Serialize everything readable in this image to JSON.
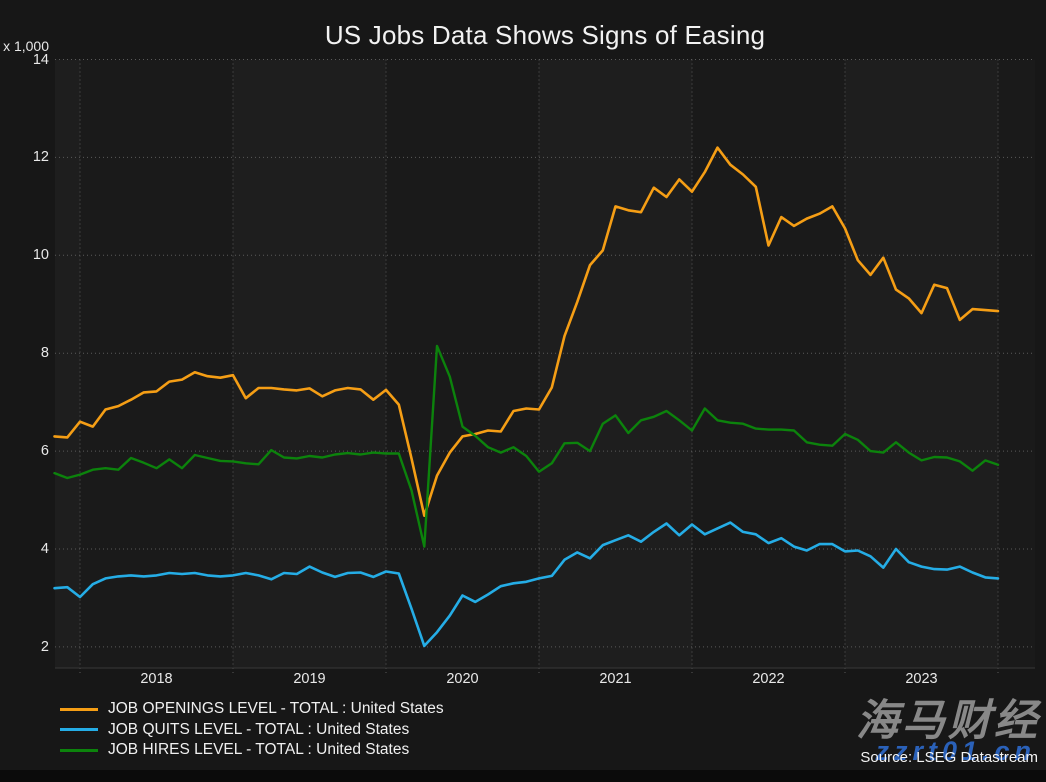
{
  "title": "US Jobs Data Shows Signs of Easing",
  "y_axis": {
    "unit_label": "x 1,000",
    "tick_labels": [
      "14",
      "12",
      "10",
      "8",
      "6",
      "4",
      "2"
    ]
  },
  "x_axis": {
    "year_labels": [
      "2018",
      "2019",
      "2020",
      "2021",
      "2022",
      "2023"
    ]
  },
  "legend": {
    "items": [
      {
        "label": "JOB OPENINGS LEVEL - TOTAL : United States",
        "color": "#f59e15"
      },
      {
        "label": "JOB QUITS LEVEL - TOTAL : United States",
        "color": "#25ade6"
      },
      {
        "label": "JOB HIRES LEVEL - TOTAL : United States",
        "color": "#0c830c"
      }
    ]
  },
  "footer": {
    "source": "Source: LSEG Datastream"
  },
  "watermark": {
    "primary": "海马财经",
    "secondary": "zzrt01.cn"
  },
  "colors": {
    "background": "#171717",
    "plot_background": "#1a1a1a",
    "plot_band_light": "#1e1e1e",
    "gridline": "#5a5a5a",
    "text": "#e9e9e9",
    "openings": "#f59e15",
    "quits": "#25ade6",
    "hires": "#0c830c"
  },
  "chart_data": {
    "type": "line",
    "title": "US Jobs Data Shows Signs of Easing",
    "y_unit": "x 1,000 (levels in thousands, axis shown in millions)",
    "x_start": "2017-11",
    "frequency": "monthly",
    "ylim": [
      2,
      14
    ],
    "x_year_gridlines": [
      "2018",
      "2019",
      "2020",
      "2021",
      "2022",
      "2023",
      "2024"
    ],
    "grid": "dotted",
    "legend_position": "bottom-left",
    "series": [
      {
        "name": "JOB OPENINGS LEVEL - TOTAL : United States",
        "color": "#f59e15",
        "values": [
          6.3,
          6.28,
          6.6,
          6.5,
          6.85,
          6.92,
          7.05,
          7.2,
          7.22,
          7.42,
          7.46,
          7.61,
          7.53,
          7.5,
          7.55,
          7.08,
          7.29,
          7.29,
          7.26,
          7.24,
          7.28,
          7.12,
          7.24,
          7.29,
          7.26,
          7.05,
          7.25,
          6.95,
          5.85,
          4.68,
          5.5,
          5.97,
          6.3,
          6.35,
          6.42,
          6.4,
          6.82,
          6.87,
          6.85,
          7.3,
          8.35,
          9.05,
          9.8,
          10.1,
          11.0,
          10.92,
          10.88,
          11.38,
          11.19,
          11.55,
          11.3,
          11.7,
          12.2,
          11.85,
          11.65,
          11.4,
          10.2,
          10.78,
          10.6,
          10.75,
          10.85,
          11.0,
          10.55,
          9.9,
          9.6,
          9.95,
          9.3,
          9.12,
          8.82,
          9.4,
          9.33,
          8.68,
          8.9,
          8.88,
          8.86
        ]
      },
      {
        "name": "JOB QUITS LEVEL - TOTAL : United States",
        "color": "#25ade6",
        "values": [
          3.2,
          3.22,
          3.02,
          3.28,
          3.4,
          3.44,
          3.46,
          3.44,
          3.46,
          3.51,
          3.49,
          3.51,
          3.46,
          3.44,
          3.46,
          3.51,
          3.46,
          3.38,
          3.51,
          3.49,
          3.64,
          3.52,
          3.43,
          3.51,
          3.52,
          3.43,
          3.54,
          3.5,
          2.78,
          2.02,
          2.3,
          2.64,
          3.05,
          2.92,
          3.07,
          3.24,
          3.3,
          3.33,
          3.4,
          3.45,
          3.78,
          3.93,
          3.81,
          4.08,
          4.18,
          4.28,
          4.15,
          4.35,
          4.52,
          4.28,
          4.5,
          4.3,
          4.42,
          4.54,
          4.35,
          4.3,
          4.12,
          4.22,
          4.05,
          3.97,
          4.1,
          4.1,
          3.95,
          3.97,
          3.85,
          3.62,
          4.0,
          3.73,
          3.64,
          3.59,
          3.58,
          3.64,
          3.52,
          3.42,
          3.4
        ]
      },
      {
        "name": "JOB HIRES LEVEL - TOTAL : United States",
        "color": "#0c830c",
        "values": [
          5.55,
          5.45,
          5.52,
          5.62,
          5.65,
          5.62,
          5.86,
          5.76,
          5.65,
          5.83,
          5.65,
          5.92,
          5.86,
          5.8,
          5.79,
          5.75,
          5.73,
          6.02,
          5.87,
          5.85,
          5.9,
          5.87,
          5.93,
          5.96,
          5.93,
          5.97,
          5.95,
          5.95,
          5.2,
          4.05,
          8.15,
          7.52,
          6.5,
          6.31,
          6.08,
          5.97,
          6.08,
          5.9,
          5.58,
          5.75,
          6.16,
          6.17,
          6.0,
          6.56,
          6.73,
          6.37,
          6.63,
          6.7,
          6.82,
          6.63,
          6.42,
          6.87,
          6.63,
          6.58,
          6.56,
          6.46,
          6.44,
          6.44,
          6.42,
          6.18,
          6.13,
          6.11,
          6.35,
          6.23,
          6.0,
          5.97,
          6.18,
          5.97,
          5.81,
          5.88,
          5.87,
          5.79,
          5.6,
          5.81,
          5.72
        ]
      }
    ]
  }
}
